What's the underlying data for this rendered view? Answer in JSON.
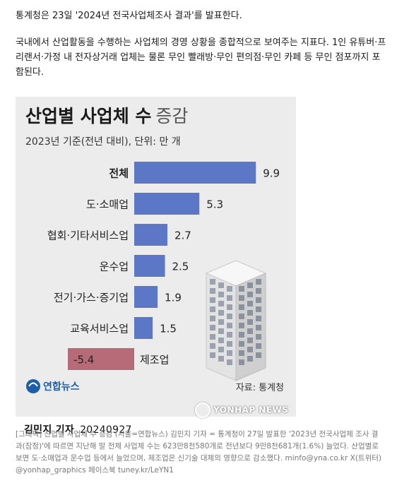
{
  "article": {
    "intro_line1": "통계청은 23일 '2024년 전국사업체조사 결과'를 발표한다.",
    "intro_line2": "국내에서 산업활동을 수행하는 사업체의 경영 상황을 종합적으로 보여주는 지표다. 1인 유튜버·프리랜서·가정 내 전자상거래 업체는 물론 무인 빨래방·무인 편의점·무인 카페 등 무인 점포까지 포함된다.",
    "caption": "[그래픽] 산업별 사업체 수 증감 (서울=연합뉴스) 김민지 기자 = 통계청이 27일 발표한 '2023년 전국사업체 조사 결과(잠정)'에 따르면 지난해 말 전체 사업체 수는 623만8천580개로 전년보다 9만8천681개(1.6%) 늘었다. 산업별로 보면 도·소매업과 운수업 등에서 늘었으며, 제조업은 신기술 대체의 영향으로 감소했다. minfo@yna.co.kr X(트위터) @yonhap_graphics 페이스북 tuney.kr/LeYN1"
  },
  "figure": {
    "title_bold": "산업별 사업체 수",
    "title_light": "증감",
    "subtitle": "2023년 기준(전년 대비), 단위: 만 개",
    "source": "자료: 통계청",
    "logo_text": "연합뉴스",
    "reporter": "김민지 기자",
    "date": "20240927",
    "watermark": "YONHAP NEWS"
  },
  "colors": {
    "positive_bar": "#5b77c6",
    "negative_bar": "#b76a78",
    "panel_bg": "#ececec",
    "logo_blue": "#1e5ea8"
  },
  "icons": [
    "building-illustration",
    "yonhap-logo-icon"
  ],
  "chart_data": {
    "type": "bar",
    "orientation": "horizontal",
    "title": "산업별 사업체 수 증감",
    "subtitle": "2023년 기준(전년 대비), 단위: 만 개",
    "categories": [
      "전체",
      "도·소매업",
      "협회·기타서비스업",
      "운수업",
      "전기·가스·증기업",
      "교육서비스업",
      "제조업"
    ],
    "values": [
      9.9,
      5.3,
      2.7,
      2.5,
      1.9,
      1.5,
      -5.4
    ],
    "value_labels": [
      "9.9",
      "5.3",
      "2.7",
      "2.5",
      "1.9",
      "1.5",
      "-5.4"
    ],
    "xlim": [
      -5.4,
      9.9
    ],
    "grid": false
  }
}
